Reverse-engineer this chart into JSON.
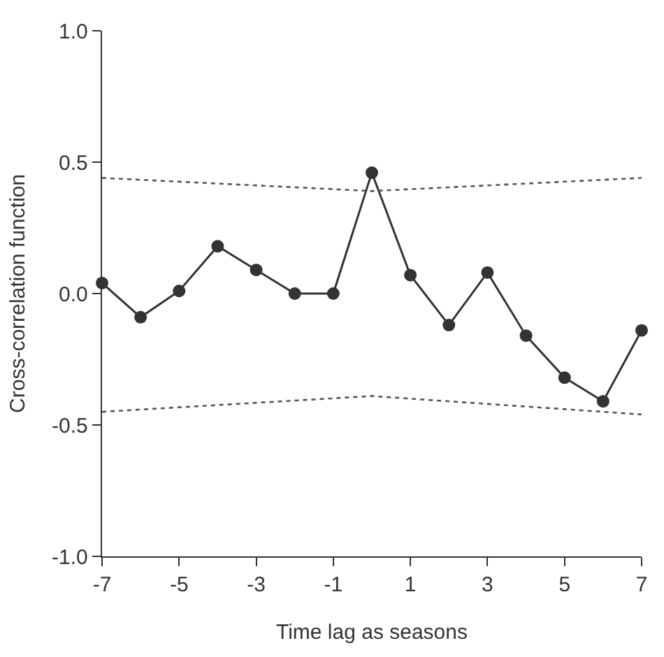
{
  "chart_data": {
    "type": "line",
    "xlabel": "Time lag as seasons",
    "ylabel": "Cross-correlation function",
    "xlim": [
      -7,
      7
    ],
    "xticks": [
      -7,
      -5,
      -3,
      -1,
      1,
      3,
      5,
      7
    ],
    "ylim": [
      -1.0,
      1.0
    ],
    "yticks": [
      {
        "value": -1.0,
        "label": "-1.0"
      },
      {
        "value": -0.5,
        "label": "-0.5"
      },
      {
        "value": 0.0,
        "label": "0.0"
      },
      {
        "value": 0.5,
        "label": "0.5"
      },
      {
        "value": 1.0,
        "label": "1.0"
      }
    ],
    "series": [
      {
        "color": "#333333",
        "marker": "circle",
        "line_style": "solid",
        "x": [
          -7,
          -6,
          -5,
          -4,
          -3,
          -2,
          -1,
          0,
          1,
          2,
          3,
          4,
          5,
          6,
          7
        ],
        "values": [
          0.04,
          -0.09,
          0.01,
          0.18,
          0.09,
          0.0,
          0.0,
          0.46,
          0.07,
          -0.12,
          0.08,
          -0.16,
          -0.32,
          -0.41,
          -0.14
        ]
      },
      {
        "color": "#555555",
        "marker": "none",
        "line_style": "dotted",
        "x": [
          -7,
          0,
          7
        ],
        "values": [
          0.44,
          0.39,
          0.44
        ]
      },
      {
        "color": "#555555",
        "marker": "none",
        "line_style": "dotted",
        "x": [
          -7,
          0,
          7
        ],
        "values": [
          -0.45,
          -0.39,
          -0.46
        ]
      }
    ]
  }
}
